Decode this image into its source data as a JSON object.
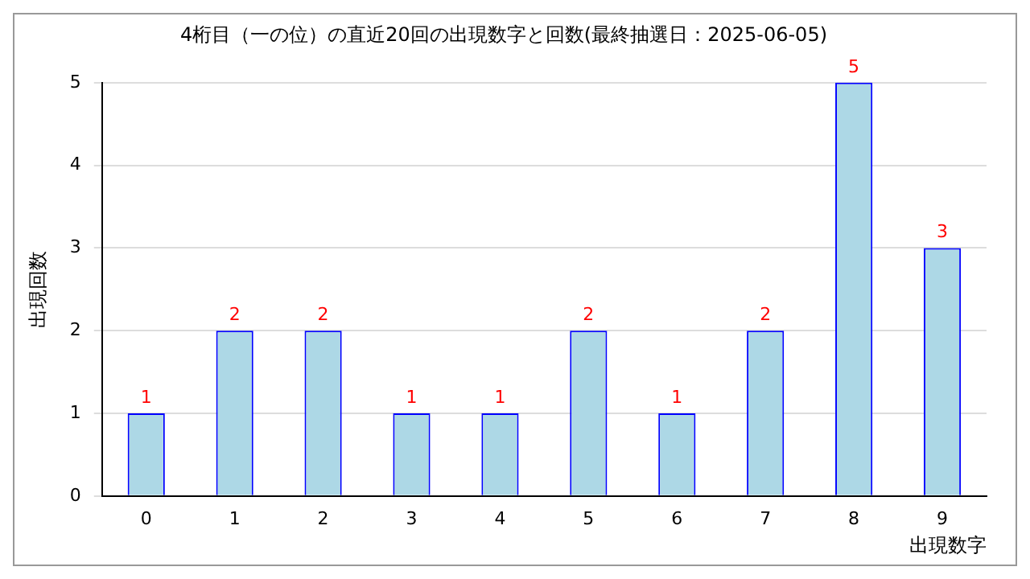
{
  "chart_data": {
    "type": "bar",
    "title": "4桁目（一の位）の直近20回の出現数字と回数(最終抽選日：2025-06-05)",
    "xlabel": "出現数字",
    "ylabel": "出現回数",
    "categories": [
      "0",
      "1",
      "2",
      "3",
      "4",
      "5",
      "6",
      "7",
      "8",
      "9"
    ],
    "values": [
      1,
      2,
      2,
      1,
      1,
      2,
      1,
      2,
      5,
      3
    ],
    "color": "#add8e6",
    "ylim": [
      0,
      5
    ],
    "yticks": [
      0,
      1,
      2,
      3,
      4,
      5
    ],
    "grid": "y",
    "legend": false,
    "data_labels": true
  }
}
